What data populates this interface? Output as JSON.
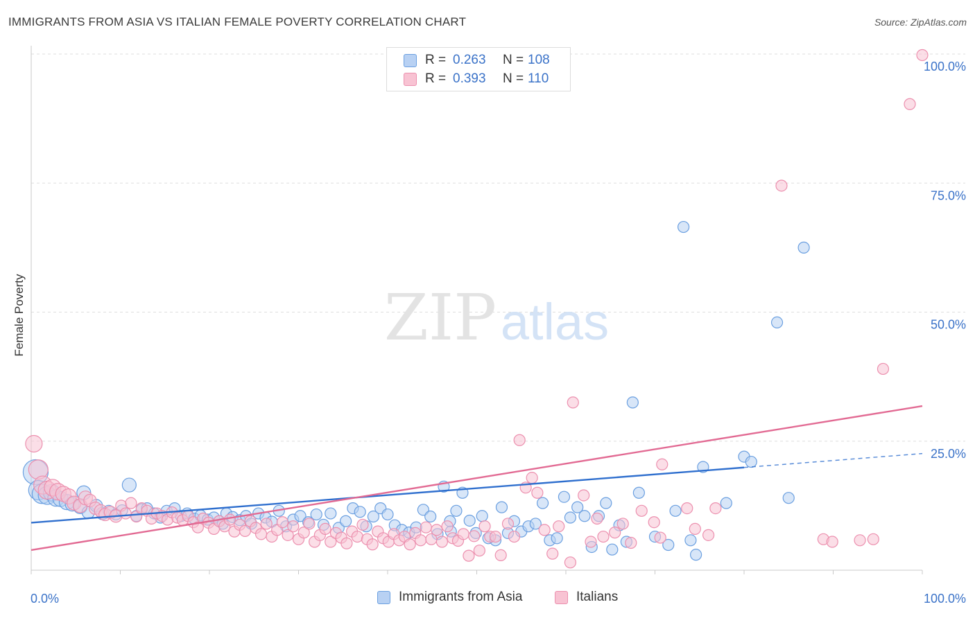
{
  "title": "IMMIGRANTS FROM ASIA VS ITALIAN FEMALE POVERTY CORRELATION CHART",
  "source": "Source: ZipAtlas.com",
  "watermark": {
    "zip": "ZIP",
    "atlas": "atlas"
  },
  "legend_top": [
    {
      "r_label": "R =",
      "r_value": "0.263",
      "n_label": "N =",
      "n_value": "108"
    },
    {
      "r_label": "R =",
      "r_value": "0.393",
      "n_label": "N =",
      "n_value": "110"
    }
  ],
  "legend_bottom": [
    "Immigrants from Asia",
    "Italians"
  ],
  "colors": {
    "asia_fill": "#b8d1f3",
    "asia_stroke": "#6a9fe0",
    "asia_line": "#2f6fce",
    "ital_fill": "#f8c3d3",
    "ital_stroke": "#ec8fae",
    "ital_line": "#e26a93",
    "tick_label": "#3a72c8",
    "grid": "#dddddd",
    "axis": "#c8c8c8"
  },
  "chart_data": {
    "type": "scatter",
    "title": "IMMIGRANTS FROM ASIA VS ITALIAN FEMALE POVERTY CORRELATION CHART",
    "xlabel": "",
    "ylabel": "Female Poverty",
    "xlim": [
      0,
      100
    ],
    "ylim": [
      0,
      100
    ],
    "x_tick_labels": [
      "0.0%",
      "100.0%"
    ],
    "y_tick_labels": [
      "25.0%",
      "50.0%",
      "75.0%",
      "100.0%"
    ],
    "y_tick_values": [
      25,
      50,
      75,
      100
    ],
    "grid": true,
    "legend_placement": "top-center",
    "series": [
      {
        "name": "Immigrants from Asia",
        "r": 0.263,
        "n": 108,
        "trend": {
          "x": [
            0,
            80
          ],
          "y": [
            9.2,
            19.9
          ],
          "dashed_to_x": 100,
          "dashed_to_y": 22.6
        },
        "points": [
          [
            0.5,
            19,
            18
          ],
          [
            0.8,
            15.5,
            14
          ],
          [
            1.2,
            14.8,
            14
          ],
          [
            1.8,
            14.5,
            13
          ],
          [
            2.3,
            15,
            12
          ],
          [
            2.8,
            14,
            12
          ],
          [
            3.3,
            13.8,
            11
          ],
          [
            4,
            13.2,
            11
          ],
          [
            4.6,
            12.8,
            10
          ],
          [
            5.5,
            12.3,
            10
          ],
          [
            5.9,
            15,
            10
          ],
          [
            6.4,
            11.2,
            9
          ],
          [
            7.3,
            12.5,
            9
          ],
          [
            8,
            11,
            9
          ],
          [
            8.7,
            11.5,
            8
          ],
          [
            9.5,
            10.8,
            8
          ],
          [
            10.2,
            11.6,
            8
          ],
          [
            11,
            16.5,
            10
          ],
          [
            11.8,
            10.5,
            8
          ],
          [
            12.4,
            11.8,
            8
          ],
          [
            13,
            12,
            8
          ],
          [
            13.8,
            11,
            8
          ],
          [
            14.5,
            10.2,
            8
          ],
          [
            15.2,
            11.5,
            8
          ],
          [
            16.1,
            12,
            8
          ],
          [
            16.8,
            10.5,
            8
          ],
          [
            17.5,
            11,
            8
          ],
          [
            18.3,
            10,
            8
          ],
          [
            19,
            10.6,
            8
          ],
          [
            19.8,
            9.8,
            8
          ],
          [
            20.5,
            10.2,
            8
          ],
          [
            21.1,
            9.5,
            8
          ],
          [
            21.9,
            11,
            8
          ],
          [
            22.6,
            10.3,
            8
          ],
          [
            23.4,
            9.7,
            8
          ],
          [
            24.1,
            10.5,
            8
          ],
          [
            24.7,
            9,
            8
          ],
          [
            25.5,
            11,
            8
          ],
          [
            26.3,
            10.2,
            8
          ],
          [
            27,
            9.4,
            8
          ],
          [
            27.8,
            11.5,
            8
          ],
          [
            28.6,
            8.5,
            8
          ],
          [
            29.4,
            9.8,
            8
          ],
          [
            30.2,
            10.5,
            8
          ],
          [
            31.1,
            9.3,
            8
          ],
          [
            32,
            10.8,
            8
          ],
          [
            32.8,
            8.8,
            8
          ],
          [
            33.6,
            11,
            8
          ],
          [
            34.5,
            8.2,
            8
          ],
          [
            35.3,
            9.5,
            8
          ],
          [
            36.1,
            12,
            8
          ],
          [
            36.9,
            11.3,
            8
          ],
          [
            37.6,
            8.5,
            8
          ],
          [
            38.4,
            10.4,
            8
          ],
          [
            39.2,
            12,
            8
          ],
          [
            40,
            10.8,
            8
          ],
          [
            40.8,
            8.7,
            8
          ],
          [
            41.6,
            7.8,
            8
          ],
          [
            42.4,
            7.3,
            8
          ],
          [
            43.2,
            8.3,
            8
          ],
          [
            44,
            11.7,
            8
          ],
          [
            44.8,
            10.4,
            8
          ],
          [
            45.6,
            7,
            8
          ],
          [
            46.3,
            16.2,
            8
          ],
          [
            47.1,
            7.5,
            8
          ],
          [
            47.7,
            11.5,
            8
          ],
          [
            48.4,
            15,
            8
          ],
          [
            49.2,
            9.6,
            8
          ],
          [
            49.9,
            7.2,
            8
          ],
          [
            50.6,
            10.5,
            8
          ],
          [
            51.3,
            6.2,
            8
          ],
          [
            52.1,
            5.8,
            8
          ],
          [
            52.8,
            12.2,
            8
          ],
          [
            53.5,
            7.2,
            8
          ],
          [
            54.2,
            9.5,
            8
          ],
          [
            55,
            7.5,
            8
          ],
          [
            55.8,
            8.5,
            8
          ],
          [
            56.6,
            9,
            8
          ],
          [
            57.4,
            13,
            8
          ],
          [
            58.2,
            5.8,
            8
          ],
          [
            59,
            6.2,
            8
          ],
          [
            59.8,
            14.2,
            8
          ],
          [
            60.5,
            10.2,
            8
          ],
          [
            61.3,
            12.2,
            8
          ],
          [
            62.1,
            10.5,
            8
          ],
          [
            62.9,
            4.5,
            8
          ],
          [
            63.7,
            10.5,
            8
          ],
          [
            64.5,
            13,
            8
          ],
          [
            65.2,
            4,
            8
          ],
          [
            66,
            8.7,
            8
          ],
          [
            66.8,
            5.5,
            8
          ],
          [
            67.5,
            32.5,
            8
          ],
          [
            68.2,
            15,
            8
          ],
          [
            70,
            6.5,
            8
          ],
          [
            71.5,
            4.9,
            8
          ],
          [
            72.3,
            11.5,
            8
          ],
          [
            73.2,
            66.5,
            8
          ],
          [
            74,
            5.8,
            8
          ],
          [
            74.6,
            3,
            8
          ],
          [
            75.4,
            20,
            8
          ],
          [
            78,
            13,
            8
          ],
          [
            80,
            22,
            8
          ],
          [
            80.8,
            21,
            8
          ],
          [
            83.7,
            48,
            8
          ],
          [
            85,
            14,
            8
          ],
          [
            86.7,
            62.5,
            8
          ],
          [
            47,
            9.5,
            8
          ],
          [
            21.5,
            9,
            8
          ]
        ]
      },
      {
        "name": "Italians",
        "r": 0.393,
        "n": 110,
        "trend": {
          "x": [
            0,
            100
          ],
          "y": [
            3.9,
            31.8
          ]
        },
        "points": [
          [
            0.3,
            24.5,
            12
          ],
          [
            0.8,
            19.5,
            14
          ],
          [
            1.3,
            16.5,
            13
          ],
          [
            1.8,
            15.5,
            13
          ],
          [
            2.4,
            16,
            12
          ],
          [
            3,
            15.2,
            12
          ],
          [
            3.6,
            14.8,
            11
          ],
          [
            4.2,
            14.3,
            11
          ],
          [
            4.8,
            13,
            10
          ],
          [
            5.5,
            12.5,
            10
          ],
          [
            6.1,
            14,
            10
          ],
          [
            6.6,
            13.5,
            9
          ],
          [
            7.2,
            12,
            9
          ],
          [
            7.8,
            11.5,
            9
          ],
          [
            8.3,
            10.8,
            9
          ],
          [
            8.9,
            11.2,
            9
          ],
          [
            9.5,
            10.5,
            9
          ],
          [
            10.1,
            12.5,
            8
          ],
          [
            10.6,
            11,
            8
          ],
          [
            11.2,
            13,
            8
          ],
          [
            11.8,
            10.4,
            8
          ],
          [
            12.4,
            12,
            8
          ],
          [
            13,
            11.5,
            8
          ],
          [
            13.5,
            10,
            8
          ],
          [
            14.1,
            11,
            8
          ],
          [
            14.7,
            10.5,
            8
          ],
          [
            15.3,
            9.8,
            8
          ],
          [
            15.8,
            11.2,
            8
          ],
          [
            16.4,
            10.2,
            8
          ],
          [
            17,
            9.7,
            8
          ],
          [
            17.6,
            10.5,
            8
          ],
          [
            18.2,
            9.3,
            8
          ],
          [
            18.7,
            8.3,
            8
          ],
          [
            19.3,
            10,
            8
          ],
          [
            19.9,
            9.2,
            8
          ],
          [
            20.5,
            8,
            8
          ],
          [
            21.1,
            9.5,
            8
          ],
          [
            21.7,
            8.5,
            8
          ],
          [
            22.3,
            9.8,
            8
          ],
          [
            22.8,
            7.5,
            8
          ],
          [
            23.4,
            8.8,
            8
          ],
          [
            24,
            7.6,
            8
          ],
          [
            24.6,
            9.5,
            8
          ],
          [
            25.2,
            8.2,
            8
          ],
          [
            25.8,
            7,
            8
          ],
          [
            26.4,
            9,
            8
          ],
          [
            27,
            6.5,
            8
          ],
          [
            27.6,
            7.8,
            8
          ],
          [
            28.2,
            9.3,
            8
          ],
          [
            28.8,
            6.8,
            8
          ],
          [
            29.4,
            8.5,
            8
          ],
          [
            30,
            6,
            8
          ],
          [
            30.6,
            7.3,
            8
          ],
          [
            31.2,
            9,
            8
          ],
          [
            31.8,
            5.5,
            8
          ],
          [
            32.4,
            6.8,
            8
          ],
          [
            33,
            8,
            8
          ],
          [
            33.6,
            5.5,
            8
          ],
          [
            34.2,
            7.2,
            8
          ],
          [
            34.8,
            6.3,
            8
          ],
          [
            35.4,
            5.2,
            8
          ],
          [
            36,
            7.5,
            8
          ],
          [
            36.6,
            6.5,
            8
          ],
          [
            37.2,
            8.8,
            8
          ],
          [
            37.7,
            6,
            8
          ],
          [
            38.3,
            5,
            8
          ],
          [
            38.9,
            7.5,
            8
          ],
          [
            39.5,
            6.2,
            8
          ],
          [
            40.1,
            5.5,
            8
          ],
          [
            40.7,
            7,
            8
          ],
          [
            41.3,
            5.8,
            8
          ],
          [
            41.9,
            6.5,
            8
          ],
          [
            42.5,
            5,
            8
          ],
          [
            43.1,
            7.2,
            8
          ],
          [
            43.7,
            5.8,
            8
          ],
          [
            44.3,
            8.3,
            8
          ],
          [
            44.9,
            6,
            8
          ],
          [
            45.5,
            7.8,
            8
          ],
          [
            46.1,
            5.5,
            8
          ],
          [
            46.7,
            8.5,
            8
          ],
          [
            47.3,
            6.2,
            8
          ],
          [
            47.9,
            5.7,
            8
          ],
          [
            48.5,
            7,
            8
          ],
          [
            49.1,
            2.8,
            8
          ],
          [
            49.7,
            6.6,
            8
          ],
          [
            50.3,
            3.8,
            8
          ],
          [
            50.9,
            8.5,
            8
          ],
          [
            51.5,
            6.5,
            8
          ],
          [
            52.1,
            6.5,
            8
          ],
          [
            52.7,
            2.9,
            8
          ],
          [
            53.5,
            9,
            8
          ],
          [
            54.2,
            6.5,
            8
          ],
          [
            54.8,
            25.2,
            8
          ],
          [
            55.5,
            16,
            8
          ],
          [
            56.2,
            17.9,
            8
          ],
          [
            56.8,
            15,
            8
          ],
          [
            57.6,
            7.8,
            8
          ],
          [
            58.5,
            3.2,
            8
          ],
          [
            59.2,
            8.5,
            8
          ],
          [
            60.5,
            1.5,
            8
          ],
          [
            60.8,
            32.5,
            8
          ],
          [
            62,
            14.5,
            8
          ],
          [
            62.8,
            5.5,
            8
          ],
          [
            63.5,
            10,
            8
          ],
          [
            64.2,
            6.5,
            8
          ],
          [
            65.5,
            7.3,
            8
          ],
          [
            66.4,
            9,
            8
          ],
          [
            67.3,
            5.3,
            8
          ],
          [
            68.5,
            11.5,
            8
          ],
          [
            84.2,
            74.5,
            8
          ]
        ]
      },
      {
        "name": "Italians",
        "points": [
          [
            69.9,
            9.3,
            8
          ],
          [
            70.6,
            6.3,
            8
          ],
          [
            70.8,
            20.5,
            8
          ],
          [
            73.6,
            12,
            8
          ],
          [
            74.5,
            8,
            8
          ],
          [
            76,
            6.8,
            8
          ],
          [
            76.8,
            12,
            8
          ],
          [
            88.9,
            6,
            8
          ],
          [
            89.9,
            5.5,
            8
          ],
          [
            93,
            5.8,
            8
          ],
          [
            94.5,
            6,
            8
          ],
          [
            95.6,
            39,
            8
          ],
          [
            98.6,
            90.3,
            8
          ],
          [
            100,
            99.8,
            8
          ]
        ]
      }
    ]
  }
}
